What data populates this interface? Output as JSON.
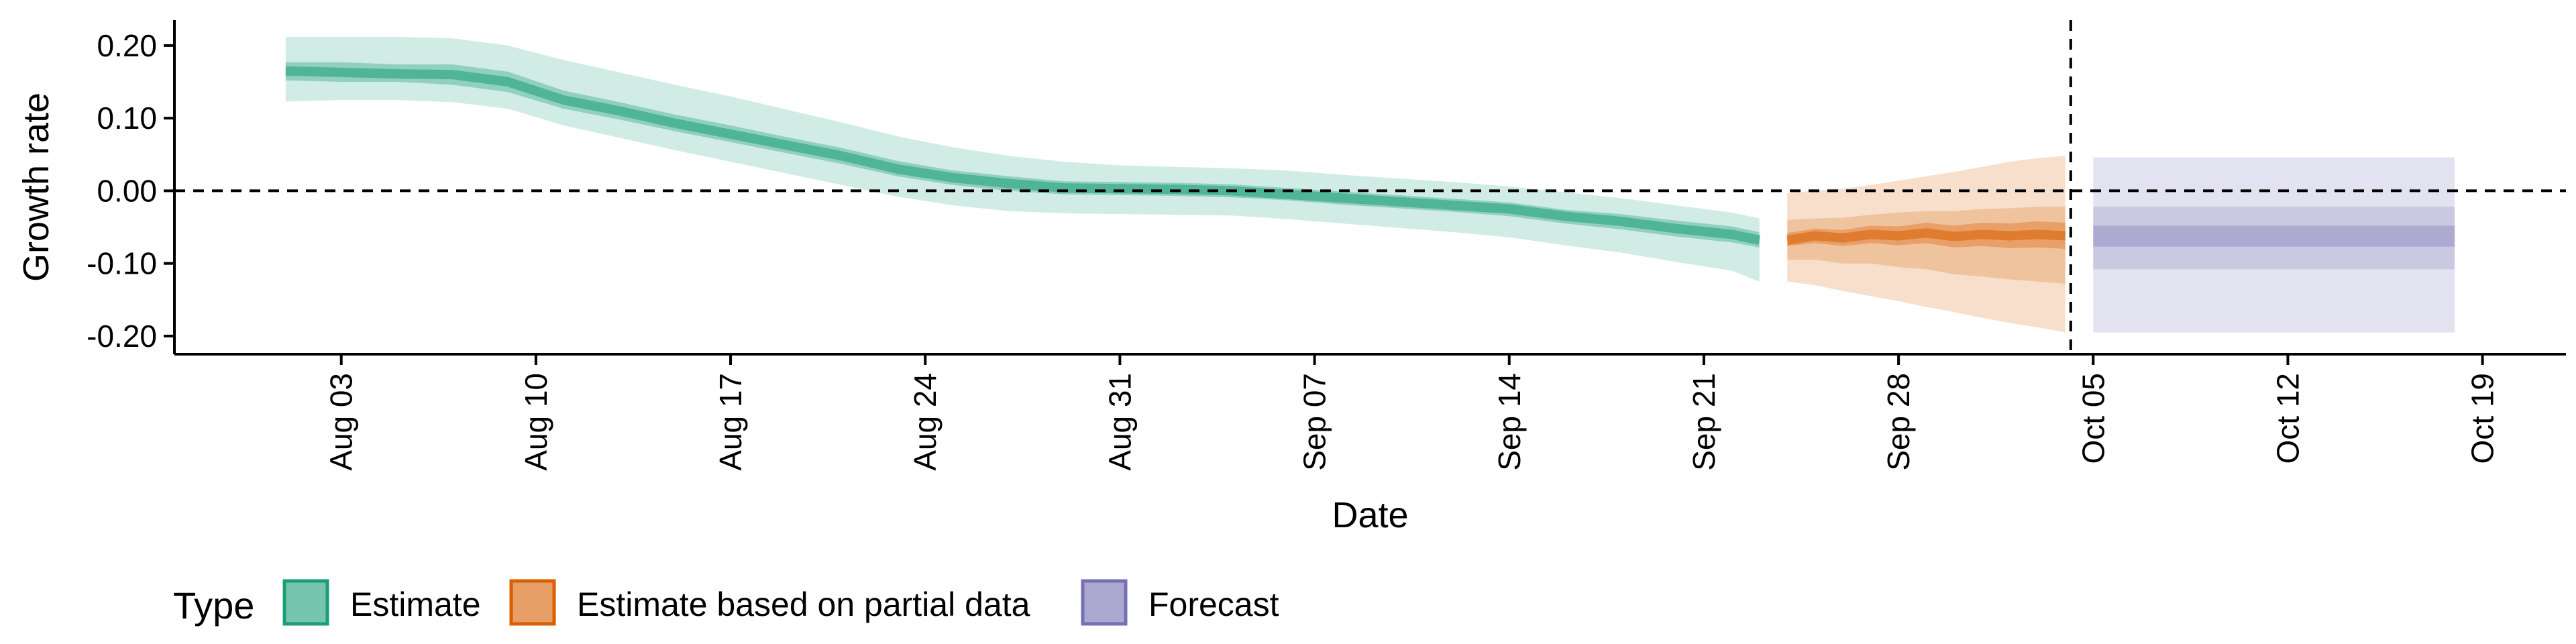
{
  "chart_data": {
    "type": "area",
    "title": "",
    "xlabel": "Date",
    "ylabel": "Growth rate",
    "x_axis": {
      "type": "date",
      "range": [
        "2020-07-28",
        "2020-10-22"
      ],
      "ticks": [
        "2020-08-03",
        "2020-08-10",
        "2020-08-17",
        "2020-08-24",
        "2020-08-31",
        "2020-09-07",
        "2020-09-14",
        "2020-09-21",
        "2020-09-28",
        "2020-10-05",
        "2020-10-12",
        "2020-10-19"
      ],
      "tick_labels": [
        "Aug 03",
        "Aug 10",
        "Aug 17",
        "Aug 24",
        "Aug 31",
        "Sep 07",
        "Sep 14",
        "Sep 21",
        "Sep 28",
        "Oct 05",
        "Oct 12",
        "Oct 19"
      ]
    },
    "y_axis": {
      "range": [
        -0.225,
        0.235
      ],
      "ticks": [
        0.2,
        0.1,
        0.0,
        -0.1,
        -0.2
      ],
      "tick_labels": [
        "0.20",
        "0.10",
        "0.00",
        "-0.10",
        "-0.20"
      ]
    },
    "reference_lines": {
      "horizontal_y": 0.0,
      "vertical_date": "2020-10-04"
    },
    "grid": false,
    "legend": {
      "title": "Type",
      "placement": "bottom",
      "entries": [
        {
          "label": "Estimate",
          "color": "#1B9E77"
        },
        {
          "label": "Estimate based on partial data",
          "color": "#D95F02"
        },
        {
          "label": "Forecast",
          "color": "#7570B3"
        }
      ]
    },
    "series": [
      {
        "name": "Estimate",
        "color": "#1B9E77",
        "x": [
          "2020-08-01",
          "2020-08-03",
          "2020-08-05",
          "2020-08-07",
          "2020-08-09",
          "2020-08-11",
          "2020-08-13",
          "2020-08-15",
          "2020-08-17",
          "2020-08-19",
          "2020-08-21",
          "2020-08-23",
          "2020-08-25",
          "2020-08-27",
          "2020-08-29",
          "2020-08-31",
          "2020-09-02",
          "2020-09-04",
          "2020-09-06",
          "2020-09-08",
          "2020-09-10",
          "2020-09-12",
          "2020-09-14",
          "2020-09-16",
          "2020-09-18",
          "2020-09-20",
          "2020-09-22",
          "2020-09-23"
        ],
        "median": [
          0.165,
          0.163,
          0.161,
          0.16,
          0.15,
          0.125,
          0.11,
          0.093,
          0.078,
          0.063,
          0.048,
          0.03,
          0.018,
          0.01,
          0.004,
          0.003,
          0.002,
          0.0,
          -0.005,
          -0.01,
          -0.015,
          -0.02,
          -0.025,
          -0.035,
          -0.042,
          -0.052,
          -0.06,
          -0.068
        ],
        "inner_lower": [
          0.152,
          0.15,
          0.15,
          0.146,
          0.136,
          0.113,
          0.098,
          0.082,
          0.067,
          0.052,
          0.037,
          0.02,
          0.008,
          0.0,
          -0.005,
          -0.006,
          -0.007,
          -0.009,
          -0.013,
          -0.019,
          -0.024,
          -0.029,
          -0.035,
          -0.045,
          -0.053,
          -0.063,
          -0.071,
          -0.078
        ],
        "inner_upper": [
          0.177,
          0.177,
          0.174,
          0.174,
          0.164,
          0.138,
          0.122,
          0.105,
          0.09,
          0.074,
          0.059,
          0.041,
          0.028,
          0.02,
          0.013,
          0.012,
          0.011,
          0.009,
          0.004,
          -0.001,
          -0.006,
          -0.011,
          -0.016,
          -0.026,
          -0.032,
          -0.041,
          -0.049,
          -0.057
        ],
        "outer_lower": [
          0.123,
          0.125,
          0.125,
          0.122,
          0.113,
          0.09,
          0.073,
          0.056,
          0.04,
          0.024,
          0.008,
          -0.008,
          -0.02,
          -0.028,
          -0.031,
          -0.032,
          -0.033,
          -0.034,
          -0.039,
          -0.045,
          -0.051,
          -0.057,
          -0.064,
          -0.075,
          -0.085,
          -0.098,
          -0.11,
          -0.125
        ],
        "outer_upper": [
          0.212,
          0.212,
          0.212,
          0.21,
          0.2,
          0.18,
          0.163,
          0.146,
          0.13,
          0.112,
          0.094,
          0.075,
          0.06,
          0.048,
          0.04,
          0.035,
          0.033,
          0.031,
          0.028,
          0.022,
          0.017,
          0.012,
          0.006,
          -0.002,
          -0.01,
          -0.02,
          -0.03,
          -0.038
        ]
      },
      {
        "name": "Estimate based on partial data",
        "color": "#D95F02",
        "x": [
          "2020-09-24",
          "2020-09-25",
          "2020-09-26",
          "2020-09-27",
          "2020-09-28",
          "2020-09-29",
          "2020-09-30",
          "2020-10-01",
          "2020-10-02",
          "2020-10-03",
          "2020-10-04"
        ],
        "median": [
          -0.068,
          -0.062,
          -0.065,
          -0.06,
          -0.062,
          -0.058,
          -0.063,
          -0.06,
          -0.062,
          -0.06,
          -0.062
        ],
        "inner_lower": [
          -0.076,
          -0.072,
          -0.076,
          -0.072,
          -0.075,
          -0.072,
          -0.078,
          -0.076,
          -0.079,
          -0.078,
          -0.08
        ],
        "inner_upper": [
          -0.058,
          -0.052,
          -0.054,
          -0.048,
          -0.049,
          -0.044,
          -0.048,
          -0.044,
          -0.045,
          -0.042,
          -0.044
        ],
        "middle_lower": [
          -0.095,
          -0.095,
          -0.1,
          -0.1,
          -0.105,
          -0.108,
          -0.115,
          -0.118,
          -0.122,
          -0.125,
          -0.128
        ],
        "middle_upper": [
          -0.04,
          -0.038,
          -0.037,
          -0.033,
          -0.03,
          -0.028,
          -0.028,
          -0.025,
          -0.024,
          -0.022,
          -0.022
        ],
        "outer_lower": [
          -0.125,
          -0.13,
          -0.138,
          -0.145,
          -0.152,
          -0.16,
          -0.167,
          -0.175,
          -0.182,
          -0.188,
          -0.195
        ],
        "outer_upper": [
          -0.003,
          0.0,
          0.003,
          0.008,
          0.014,
          0.02,
          0.026,
          0.033,
          0.04,
          0.045,
          0.048
        ]
      },
      {
        "name": "Forecast",
        "color": "#7570B3",
        "x": [
          "2020-10-05",
          "2020-10-18"
        ],
        "median": [
          -0.062,
          -0.062
        ],
        "inner_lower": [
          -0.077,
          -0.077
        ],
        "inner_upper": [
          -0.048,
          -0.048
        ],
        "middle_lower": [
          -0.108,
          -0.108
        ],
        "middle_upper": [
          -0.022,
          -0.022
        ],
        "outer_lower": [
          -0.195,
          -0.195
        ],
        "outer_upper": [
          0.046,
          0.046
        ]
      }
    ]
  }
}
